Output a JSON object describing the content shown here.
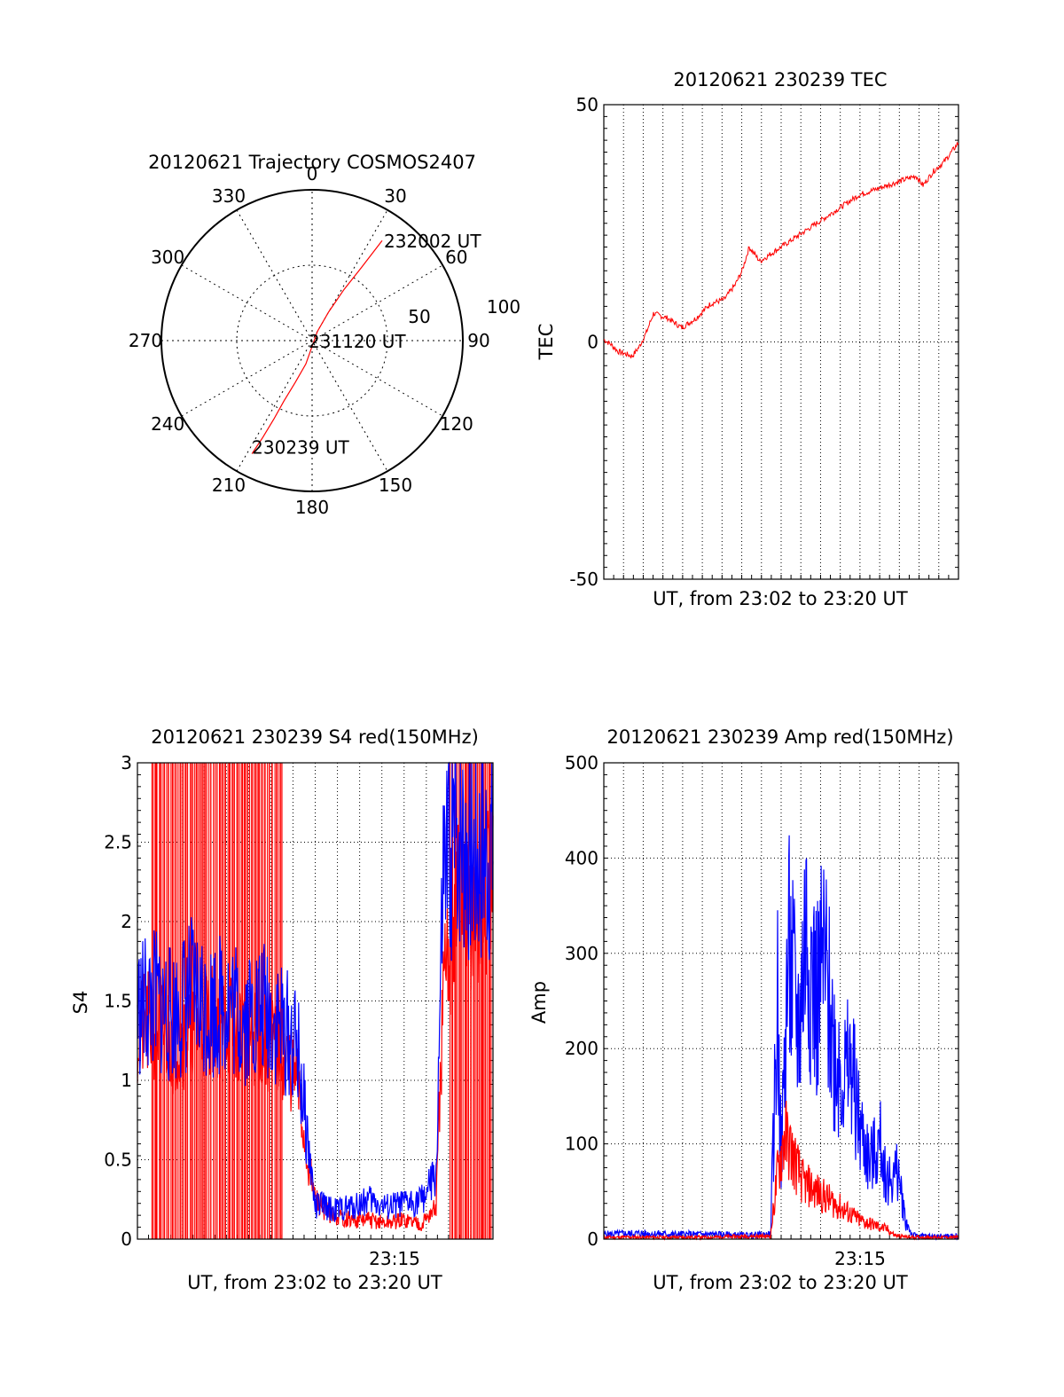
{
  "colors": {
    "red": "#ff0000",
    "blue": "#0000ff",
    "axis": "#000000",
    "grid": "#000000"
  },
  "chart_data": [
    {
      "type": "polar",
      "title": "20120621 Trajectory COSMOS2407",
      "angle_labels": [
        "0",
        "30",
        "60",
        "90",
        "120",
        "150",
        "180",
        "210",
        "240",
        "270",
        "300",
        "330"
      ],
      "radius_labels": [
        "50",
        "100"
      ],
      "rlim": [
        0,
        100
      ],
      "grid": true,
      "series": [
        {
          "color": "red",
          "points": [
            {
              "az": 208,
              "r": 85
            },
            {
              "az": 207,
              "r": 72
            },
            {
              "az": 206,
              "r": 58
            },
            {
              "az": 205,
              "r": 44
            },
            {
              "az": 202,
              "r": 30
            },
            {
              "az": 195,
              "r": 16
            },
            {
              "az": 30,
              "r": 7
            },
            {
              "az": 30,
              "r": 22
            },
            {
              "az": 32,
              "r": 40
            },
            {
              "az": 34,
              "r": 58
            },
            {
              "az": 35,
              "r": 81
            }
          ]
        }
      ],
      "annotations": [
        {
          "text": "232002 UT",
          "az": 35,
          "r": 81
        },
        {
          "text": "231120 UT",
          "az": 0,
          "r": 0
        },
        {
          "text": "230239 UT",
          "az": 208,
          "r": 85
        }
      ]
    },
    {
      "type": "line",
      "title": "20120621 230239 TEC",
      "xlabel": "UT, from 23:02 to 23:20 UT",
      "ylabel": "TEC",
      "xlim": [
        0,
        1
      ],
      "ylim": [
        -50,
        50
      ],
      "yticks": [
        "50",
        "0",
        "-50"
      ],
      "grid": true,
      "series": [
        {
          "color": "red",
          "x": [
            0,
            0.02,
            0.04,
            0.06,
            0.08,
            0.1,
            0.12,
            0.14,
            0.18,
            0.22,
            0.26,
            0.3,
            0.34,
            0.37,
            0.39,
            0.41,
            0.44,
            0.48,
            0.52,
            0.56,
            0.6,
            0.64,
            0.68,
            0.72,
            0.76,
            0.8,
            0.84,
            0.88,
            0.9,
            0.93,
            0.96,
            0.98,
            1.0
          ],
          "y": [
            0.5,
            -0.5,
            -2,
            -2.5,
            -3,
            -1,
            2,
            6,
            5,
            3,
            5,
            8,
            9,
            12,
            15,
            20,
            17,
            19,
            21,
            23,
            25,
            27,
            29,
            31,
            32,
            33,
            34,
            35,
            33,
            36,
            38,
            40,
            42
          ]
        }
      ]
    },
    {
      "type": "line",
      "title": "20120621 230239 S4 red(150MHz)",
      "xlabel": "UT, from 23:02 to 23:20 UT",
      "ylabel": "S4",
      "xlim": [
        0,
        1
      ],
      "ylim": [
        0,
        3
      ],
      "yticks": [
        "0",
        "0.5",
        "1",
        "1.5",
        "2",
        "2.5",
        "3"
      ],
      "xtick_label": "23:15",
      "grid": true,
      "series": [
        {
          "color": "red",
          "x": [
            0,
            0.05,
            0.1,
            0.15,
            0.2,
            0.25,
            0.3,
            0.35,
            0.4,
            0.45,
            0.47,
            0.5,
            0.52,
            0.55,
            0.6,
            0.65,
            0.7,
            0.75,
            0.8,
            0.84,
            0.86,
            0.9,
            0.95,
            1.0
          ],
          "y": [
            1.3,
            1.35,
            1.25,
            1.3,
            1.4,
            1.35,
            1.3,
            1.25,
            1.2,
            1.0,
            0.6,
            0.25,
            0.2,
            0.15,
            0.12,
            0.12,
            0.1,
            0.12,
            0.1,
            0.2,
            1.5,
            2.2,
            2.0,
            2.2
          ]
        },
        {
          "color": "blue",
          "x": [
            0,
            0.05,
            0.1,
            0.15,
            0.2,
            0.25,
            0.3,
            0.35,
            0.4,
            0.45,
            0.47,
            0.5,
            0.52,
            0.55,
            0.6,
            0.65,
            0.7,
            0.75,
            0.8,
            0.84,
            0.86,
            0.9,
            0.95,
            1.0
          ],
          "y": [
            1.45,
            1.5,
            1.4,
            1.55,
            1.45,
            1.5,
            1.4,
            1.45,
            1.35,
            1.2,
            0.8,
            0.2,
            0.22,
            0.18,
            0.2,
            0.25,
            0.2,
            0.22,
            0.25,
            0.4,
            2.2,
            2.6,
            2.4,
            2.5
          ]
        }
      ]
    },
    {
      "type": "line",
      "title": "20120621 230239 Amp red(150MHz)",
      "xlabel": "UT, from 23:02 to 23:20 UT",
      "ylabel": "Amp",
      "xlim": [
        0,
        1
      ],
      "ylim": [
        0,
        500
      ],
      "yticks": [
        "0",
        "100",
        "200",
        "300",
        "400",
        "500"
      ],
      "xtick_label": "23:15",
      "grid": true,
      "series": [
        {
          "color": "red",
          "x": [
            0,
            0.1,
            0.2,
            0.3,
            0.4,
            0.47,
            0.49,
            0.51,
            0.53,
            0.56,
            0.6,
            0.64,
            0.68,
            0.72,
            0.76,
            0.8,
            0.82,
            0.86,
            0.9,
            0.95,
            1.0
          ],
          "y": [
            2,
            2,
            2,
            2,
            3,
            3,
            70,
            110,
            90,
            60,
            50,
            40,
            30,
            20,
            15,
            10,
            4,
            2,
            2,
            2,
            2
          ]
        },
        {
          "color": "blue",
          "x": [
            0,
            0.1,
            0.2,
            0.3,
            0.4,
            0.47,
            0.49,
            0.5,
            0.52,
            0.55,
            0.57,
            0.6,
            0.62,
            0.65,
            0.68,
            0.7,
            0.72,
            0.75,
            0.78,
            0.8,
            0.83,
            0.85,
            0.87,
            0.9,
            0.95,
            1.0
          ],
          "y": [
            5,
            6,
            5,
            5,
            4,
            5,
            250,
            80,
            300,
            220,
            330,
            250,
            290,
            200,
            170,
            180,
            120,
            80,
            100,
            60,
            70,
            20,
            4,
            3,
            3,
            3
          ]
        }
      ]
    }
  ]
}
